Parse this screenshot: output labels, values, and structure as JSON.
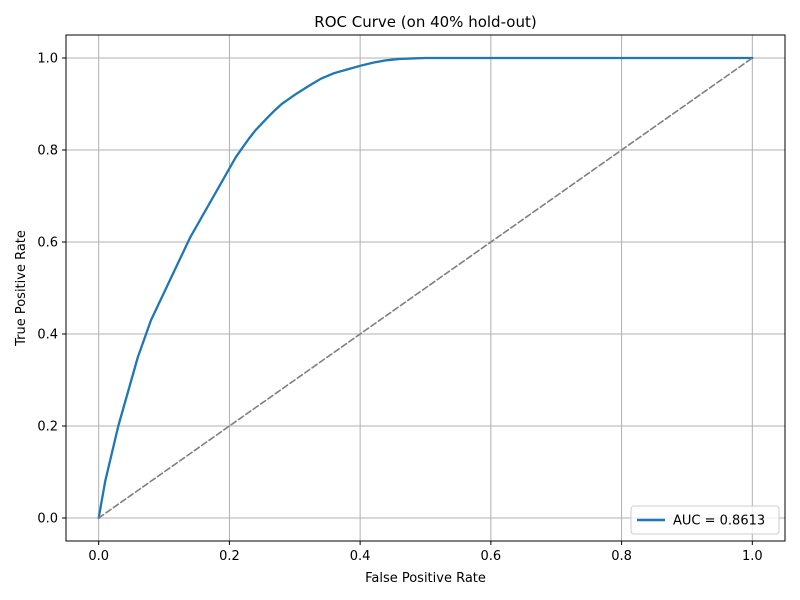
{
  "chart_data": {
    "type": "line",
    "title": "ROC Curve (on 40% hold-out)",
    "xlabel": "False Positive Rate",
    "ylabel": "True Positive Rate",
    "xlim": [
      -0.05,
      1.05
    ],
    "ylim": [
      -0.05,
      1.05
    ],
    "x_ticks": [
      "0.0",
      "0.2",
      "0.4",
      "0.6",
      "0.8",
      "1.0"
    ],
    "y_ticks": [
      "0.0",
      "0.2",
      "0.4",
      "0.6",
      "0.8",
      "1.0"
    ],
    "grid": true,
    "legend_position": "lower-right",
    "series": [
      {
        "name": "AUC = 0.8613",
        "color": "#1f77b4",
        "style": "solid",
        "x": [
          0.0,
          0.005,
          0.01,
          0.015,
          0.02,
          0.03,
          0.04,
          0.05,
          0.06,
          0.07,
          0.08,
          0.09,
          0.1,
          0.11,
          0.12,
          0.13,
          0.14,
          0.15,
          0.16,
          0.17,
          0.18,
          0.19,
          0.2,
          0.21,
          0.22,
          0.23,
          0.24,
          0.25,
          0.26,
          0.27,
          0.28,
          0.29,
          0.3,
          0.32,
          0.34,
          0.36,
          0.38,
          0.4,
          0.42,
          0.44,
          0.46,
          0.48,
          0.5,
          0.55,
          0.6,
          0.7,
          0.8,
          0.9,
          1.0
        ],
        "y": [
          0.0,
          0.04,
          0.08,
          0.11,
          0.14,
          0.2,
          0.25,
          0.3,
          0.35,
          0.39,
          0.43,
          0.46,
          0.49,
          0.52,
          0.55,
          0.58,
          0.61,
          0.635,
          0.66,
          0.685,
          0.71,
          0.735,
          0.76,
          0.785,
          0.805,
          0.825,
          0.843,
          0.858,
          0.873,
          0.887,
          0.9,
          0.91,
          0.92,
          0.938,
          0.955,
          0.967,
          0.975,
          0.983,
          0.99,
          0.995,
          0.998,
          0.999,
          1.0,
          1.0,
          1.0,
          1.0,
          1.0,
          1.0,
          1.0
        ]
      },
      {
        "name": "",
        "color": "#7f7f7f",
        "style": "dashed",
        "x": [
          0,
          1
        ],
        "y": [
          0,
          1
        ]
      }
    ]
  }
}
